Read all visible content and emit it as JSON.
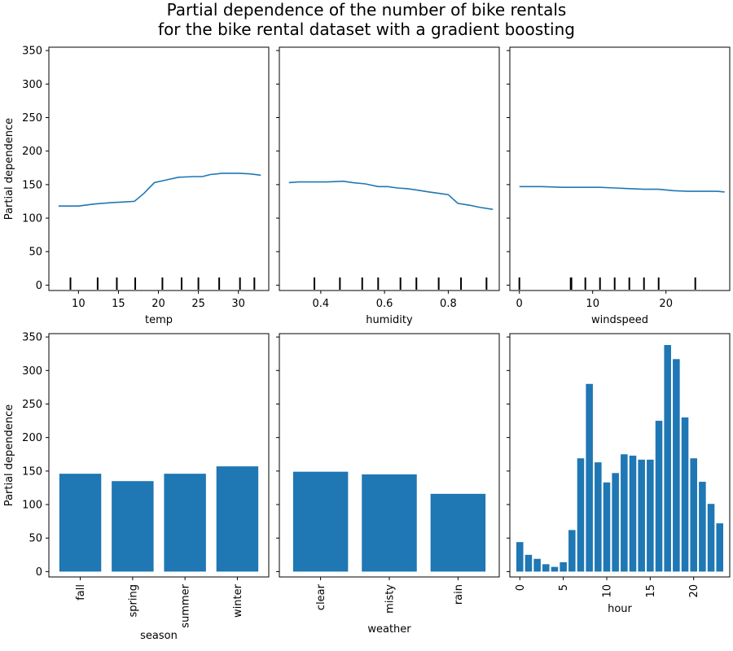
{
  "figure": {
    "title_lines": [
      "Partial dependence of the number of bike rentals",
      "for the bike rental dataset with a gradient boosting"
    ]
  },
  "colors": {
    "series": "#1f77b4",
    "axes": "#000000"
  },
  "chart_data": [
    {
      "type": "line",
      "xlabel": "temp",
      "ylabel": "Partial dependence",
      "xlim": [
        6.3,
        33.8
      ],
      "ylim": [
        -8,
        355
      ],
      "xticks": [
        10,
        15,
        20,
        25,
        30
      ],
      "yticks": [
        0,
        50,
        100,
        150,
        200,
        250,
        300,
        350
      ],
      "x": [
        7.5,
        10,
        12,
        14,
        15.5,
        17,
        18.2,
        19.5,
        21,
        22.5,
        24.5,
        25.5,
        26.5,
        28,
        30,
        31.5,
        32.8
      ],
      "y": [
        118,
        118,
        121,
        123,
        124,
        125,
        137,
        153,
        157,
        161,
        162,
        162,
        165,
        167,
        167,
        166,
        164
      ],
      "rug": [
        9.0,
        12.4,
        14.8,
        17.1,
        20.5,
        22.9,
        25.0,
        27.6,
        30.2,
        32.0
      ]
    },
    {
      "type": "line",
      "xlabel": "humidity",
      "ylabel": "Partial dependence",
      "xlim": [
        0.27,
        0.96
      ],
      "ylim": [
        -8,
        355
      ],
      "xticks": [
        0.4,
        0.6,
        0.8
      ],
      "yticks": [
        0,
        50,
        100,
        150,
        200,
        250,
        300,
        350
      ],
      "x": [
        0.3,
        0.33,
        0.37,
        0.42,
        0.47,
        0.5,
        0.54,
        0.58,
        0.61,
        0.64,
        0.67,
        0.7,
        0.74,
        0.77,
        0.8,
        0.83,
        0.87,
        0.9,
        0.94
      ],
      "y": [
        153,
        154,
        154,
        154,
        155,
        153,
        151,
        147,
        147,
        145,
        144,
        142,
        139,
        137,
        135,
        122,
        119,
        116,
        113
      ],
      "rug": [
        0.38,
        0.46,
        0.53,
        0.58,
        0.65,
        0.7,
        0.77,
        0.84,
        0.92
      ]
    },
    {
      "type": "line",
      "xlabel": "windspeed",
      "ylabel": "Partial dependence",
      "xlim": [
        -1.3,
        28.7
      ],
      "ylim": [
        -8,
        355
      ],
      "xticks": [
        0,
        10,
        20
      ],
      "yticks": [
        0,
        50,
        100,
        150,
        200,
        250,
        300,
        350
      ],
      "x": [
        0,
        3,
        6,
        9,
        11,
        13,
        15,
        17,
        19,
        21,
        23,
        25,
        27,
        28
      ],
      "y": [
        147,
        147,
        146,
        146,
        146,
        145,
        144,
        143,
        143,
        141,
        140,
        140,
        140,
        139
      ],
      "rug": [
        0,
        7.0,
        7.1,
        9.0,
        11.0,
        13.0,
        15.0,
        17.0,
        19.0,
        24.0
      ]
    },
    {
      "type": "bar",
      "xlabel": "season",
      "ylabel": "Partial dependence",
      "categories": [
        "fall",
        "spring",
        "summer",
        "winter"
      ],
      "values": [
        146,
        135,
        146,
        157
      ],
      "ylim": [
        -8,
        355
      ],
      "yticks": [
        0,
        50,
        100,
        150,
        200,
        250,
        300,
        350
      ]
    },
    {
      "type": "bar",
      "xlabel": "weather",
      "ylabel": "",
      "categories": [
        "clear",
        "misty",
        "rain"
      ],
      "values": [
        149,
        145,
        116
      ],
      "ylim": [
        -8,
        355
      ],
      "yticks": [
        0,
        50,
        100,
        150,
        200,
        250,
        300,
        350
      ]
    },
    {
      "type": "bar",
      "xlabel": "hour",
      "ylabel": "",
      "x": [
        0,
        1,
        2,
        3,
        4,
        5,
        6,
        7,
        8,
        9,
        10,
        11,
        12,
        13,
        14,
        15,
        16,
        17,
        18,
        19,
        20,
        21,
        22,
        23
      ],
      "values": [
        44,
        25,
        19,
        11,
        7,
        14,
        62,
        169,
        280,
        163,
        133,
        147,
        175,
        173,
        167,
        167,
        225,
        338,
        317,
        230,
        169,
        134,
        101,
        72
      ],
      "xticks": [
        0,
        5,
        10,
        15,
        20
      ],
      "xlim": [
        -1.15,
        24.15
      ],
      "ylim": [
        -8,
        355
      ],
      "yticks": [
        0,
        50,
        100,
        150,
        200,
        250,
        300,
        350
      ]
    }
  ]
}
